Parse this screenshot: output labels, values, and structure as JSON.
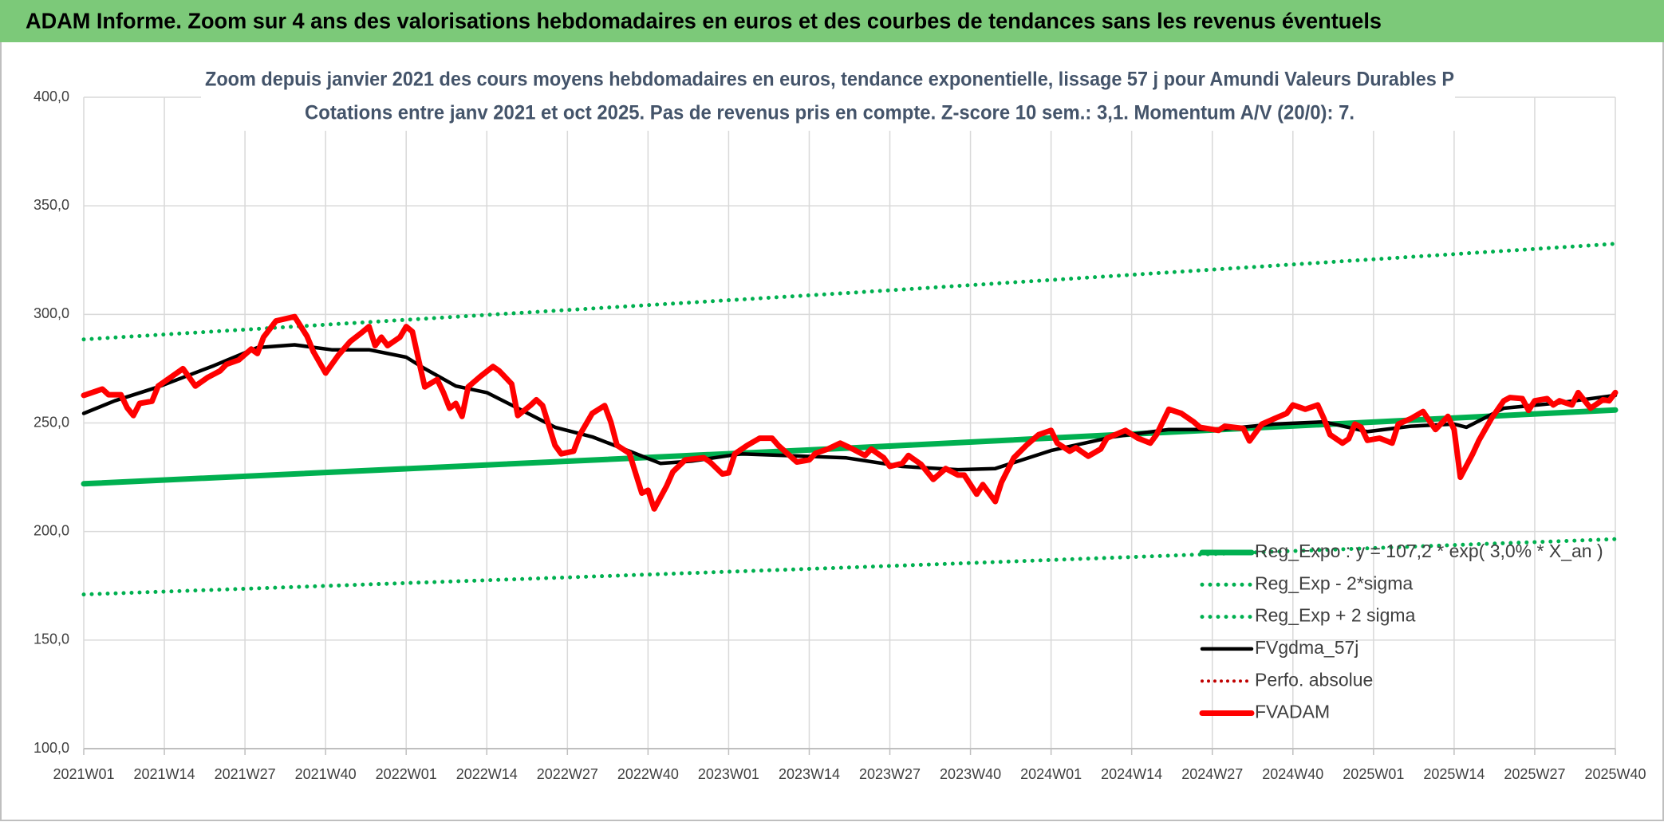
{
  "header": {
    "title": "ADAM Informe. Zoom sur 4 ans des valorisations hebdomadaires en euros et des courbes de tendances sans les revenus éventuels"
  },
  "chart_data": {
    "type": "line",
    "title": "Zoom depuis janvier 2021 des cours moyens hebdomadaires en euros, tendance exponentielle, lissage 57 j pour Amundi Valeurs Durables P",
    "subtitle": "Cotations entre janv 2021 et oct 2025. Pas de revenus pris en compte. Z-score 10 sem.: 3,1. Momentum A/V (20/0): 7.",
    "xlim": [
      0,
      247
    ],
    "xticks": [
      {
        "value": 0,
        "label": "2021W01"
      },
      {
        "value": 13,
        "label": "2021W14"
      },
      {
        "value": 26,
        "label": "2021W27"
      },
      {
        "value": 39,
        "label": "2021W40"
      },
      {
        "value": 52,
        "label": "2022W01"
      },
      {
        "value": 65,
        "label": "2022W14"
      },
      {
        "value": 78,
        "label": "2022W27"
      },
      {
        "value": 91,
        "label": "2022W40"
      },
      {
        "value": 104,
        "label": "2023W01"
      },
      {
        "value": 117,
        "label": "2023W14"
      },
      {
        "value": 130,
        "label": "2023W27"
      },
      {
        "value": 143,
        "label": "2023W40"
      },
      {
        "value": 156,
        "label": "2024W01"
      },
      {
        "value": 169,
        "label": "2024W14"
      },
      {
        "value": 182,
        "label": "2024W27"
      },
      {
        "value": 195,
        "label": "2024W40"
      },
      {
        "value": 208,
        "label": "2025W01"
      },
      {
        "value": 221,
        "label": "2025W14"
      },
      {
        "value": 234,
        "label": "2025W27"
      },
      {
        "value": 247,
        "label": "2025W40"
      }
    ],
    "ylim": [
      100,
      400
    ],
    "yticks": [
      {
        "value": 100,
        "label": "100,0"
      },
      {
        "value": 150,
        "label": "150,0"
      },
      {
        "value": 200,
        "label": "200,0"
      },
      {
        "value": 250,
        "label": "250,0"
      },
      {
        "value": 300,
        "label": "300,0"
      },
      {
        "value": 350,
        "label": "350,0"
      },
      {
        "value": 400,
        "label": "400,0"
      }
    ],
    "grid": true,
    "legend": "lower right",
    "series": [
      {
        "name": "Reg_Expo : y = 107,2 * exp( 3,0% *  X_an )",
        "color": "#00b050",
        "dash": "solid",
        "x": [
          0,
          124,
          247
        ],
        "values": [
          222,
          238.5,
          256
        ]
      },
      {
        "name": "Reg_Exp - 2*sigma",
        "color": "#00b050",
        "dash": "dotted",
        "x": [
          0,
          124,
          247
        ],
        "values": [
          171,
          183.5,
          196.5
        ]
      },
      {
        "name": "Reg_Exp + 2 sigma",
        "color": "#00b050",
        "dash": "dotted",
        "x": [
          0,
          124,
          247
        ],
        "values": [
          288.5,
          310,
          332.5
        ]
      },
      {
        "name": "FVgdma_57j",
        "color": "#000000",
        "dash": "solid",
        "x": [
          0,
          5,
          12,
          21,
          28,
          34,
          40,
          46,
          52,
          55,
          60,
          65,
          70,
          76,
          82,
          88,
          93,
          98,
          106,
          115,
          123,
          132,
          141,
          147,
          156,
          166,
          175,
          183,
          192,
          200,
          207,
          214,
          221,
          223,
          229,
          238,
          247
        ],
        "values": [
          254.4,
          260.2,
          266.6,
          276.4,
          284.7,
          286,
          283.7,
          283.7,
          280.3,
          275,
          267,
          264,
          256.8,
          248,
          243.6,
          237,
          231.4,
          232.4,
          235.8,
          234.8,
          233.9,
          230,
          228.5,
          229,
          237.3,
          243.6,
          247,
          247,
          249.5,
          250.5,
          246,
          248.5,
          249.5,
          248,
          256.8,
          259.3,
          262.7
        ]
      },
      {
        "name": "Perfo. absolue",
        "color": "#c00000",
        "dash": "dotted",
        "x": [],
        "values": []
      },
      {
        "name": "FVADAM",
        "color": "#ff0000",
        "dash": "solid",
        "x": [
          0,
          3,
          4,
          6,
          7,
          8,
          9,
          11,
          12,
          15,
          16,
          18,
          20,
          22,
          23,
          25,
          27,
          28,
          29,
          31,
          34,
          36,
          37,
          39,
          41,
          43,
          45,
          46,
          47,
          48,
          49,
          51,
          52,
          53,
          54,
          55,
          57,
          58,
          59,
          60,
          61,
          62,
          64,
          66,
          67,
          69,
          70,
          72,
          73,
          74,
          76,
          77,
          79,
          80,
          82,
          84,
          85,
          86,
          88,
          90,
          91,
          92,
          94,
          95,
          97,
          100,
          101,
          103,
          104,
          105,
          107,
          109,
          111,
          112,
          115,
          117,
          118,
          120,
          122,
          124,
          126,
          127,
          129,
          130,
          132,
          133,
          135,
          137,
          139,
          141,
          142,
          144,
          145,
          147,
          148,
          150,
          152,
          154,
          156,
          157,
          159,
          160,
          162,
          164,
          165,
          168,
          170,
          172,
          173,
          175,
          177,
          179,
          180,
          183,
          184,
          187,
          188,
          190,
          192,
          194,
          195,
          196,
          197,
          199,
          200,
          201,
          203,
          204,
          205,
          206,
          207,
          209,
          211,
          212,
          214,
          216,
          217,
          218,
          220,
          221,
          222,
          224,
          225,
          227,
          229,
          230,
          232,
          233,
          234,
          236,
          237,
          238,
          240,
          241,
          243,
          245,
          246,
          247
        ],
        "values": [
          262.7,
          265.6,
          263,
          263,
          257,
          253.4,
          259,
          260,
          267,
          273,
          275,
          267,
          271,
          274,
          277,
          279,
          284,
          282,
          289.5,
          297,
          299,
          290,
          283,
          273,
          281,
          287.6,
          292,
          294.4,
          285.6,
          289.5,
          285.6,
          289.5,
          294.4,
          292,
          279,
          266.6,
          270,
          264,
          256.8,
          259,
          253,
          266.6,
          271.5,
          276,
          274,
          268,
          253.4,
          258,
          260.7,
          258,
          239.7,
          235.8,
          237,
          244.6,
          254.4,
          258,
          250.5,
          239.7,
          236,
          217.7,
          219,
          210.4,
          221,
          227.5,
          233,
          234,
          232,
          226.5,
          227,
          235.8,
          239.7,
          243,
          243,
          239.7,
          232,
          233,
          236,
          238,
          240.7,
          238,
          235,
          238,
          234,
          230,
          231.4,
          235,
          231,
          224,
          229,
          226,
          226,
          217.2,
          221.6,
          213.8,
          222.6,
          234,
          239.7,
          244.6,
          246.6,
          240.7,
          237,
          238.6,
          234.7,
          238,
          243,
          246.6,
          243,
          240.7,
          244.6,
          256.3,
          254.4,
          250.5,
          248,
          246.6,
          248.5,
          247.5,
          241.7,
          249.5,
          252,
          254.4,
          258.3,
          257.3,
          256.3,
          258.3,
          252,
          244.6,
          240.7,
          242.7,
          249.5,
          248,
          242,
          243,
          240.7,
          249.5,
          252,
          255.3,
          251,
          247,
          253,
          247,
          225,
          235.8,
          242,
          252,
          260.2,
          261.7,
          261.2,
          255.8,
          260.2,
          261.2,
          258.3,
          260.2,
          258.3,
          264,
          256.8,
          260.7,
          260.2,
          264
        ]
      }
    ]
  }
}
